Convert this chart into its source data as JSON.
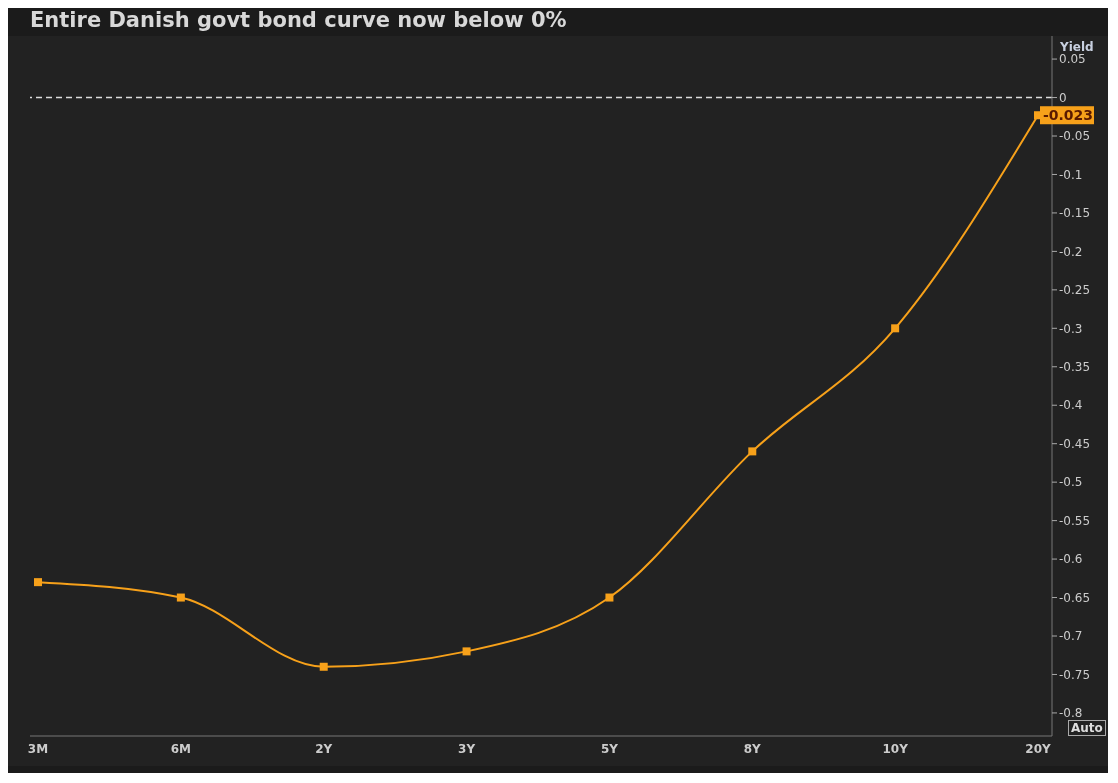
{
  "chart_data": {
    "type": "line",
    "title": "Entire Danish govt bond curve now below 0%",
    "ylabel": "Yield",
    "categories": [
      "3M",
      "6M",
      "2Y",
      "3Y",
      "5Y",
      "8Y",
      "10Y",
      "20Y"
    ],
    "series": [
      {
        "color": "#f7a11a",
        "values": [
          -0.63,
          -0.65,
          -0.74,
          -0.72,
          -0.65,
          -0.46,
          -0.3,
          -0.023
        ],
        "value_labels": [
          null,
          null,
          null,
          null,
          null,
          null,
          null,
          "-0.023"
        ]
      }
    ],
    "ylim": [
      -0.83,
      0.08
    ],
    "yticks": [
      0.05,
      0,
      -0.05,
      -0.1,
      -0.15,
      -0.2,
      -0.25,
      -0.3,
      -0.35,
      -0.4,
      -0.45,
      -0.5,
      -0.55,
      -0.6,
      -0.65,
      -0.7,
      -0.75,
      -0.8
    ],
    "ref_lines": [
      {
        "axis": "y",
        "value": 0,
        "color": "#dddddd",
        "line_style": "dashed"
      }
    ],
    "annotations": [
      "Auto"
    ],
    "grid": false,
    "legend": false,
    "marker": "square",
    "line_style": "solid"
  }
}
